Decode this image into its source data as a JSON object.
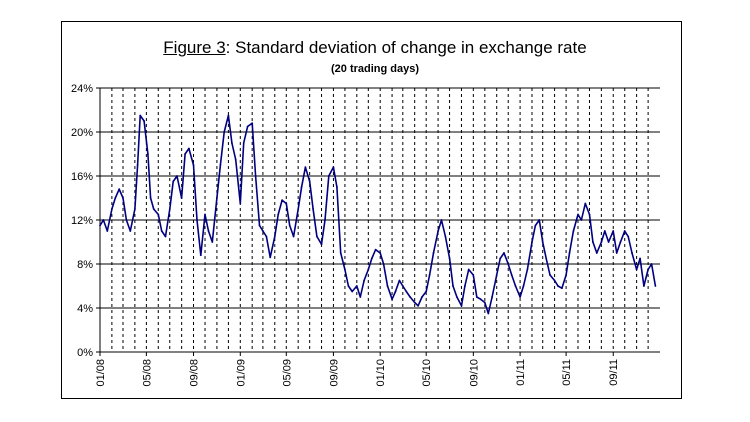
{
  "chart_data": {
    "type": "line",
    "title_label": "Figure 3",
    "title_rest": ": Standard deviation of change in exchange rate",
    "subtitle": "(20 trading days)",
    "xlabel": "",
    "ylabel": "",
    "ylim": [
      0,
      24
    ],
    "y_ticks": [
      "0%",
      "4%",
      "8%",
      "12%",
      "16%",
      "20%",
      "24%"
    ],
    "x_ticks": [
      "01/08",
      "05/08",
      "09/08",
      "01/09",
      "05/09",
      "09/09",
      "01/10",
      "05/10",
      "09/10",
      "01/11",
      "05/11",
      "09/11"
    ],
    "grid": "horizontal solid at each tick; vertical dashed monthly",
    "legend": "none",
    "series": [
      {
        "color": "#000080",
        "points": [
          [
            "2008-01-01",
            11.5
          ],
          [
            "2008-01-10",
            12.0
          ],
          [
            "2008-01-20",
            11.0
          ],
          [
            "2008-02-01",
            13.0
          ],
          [
            "2008-02-10",
            14.0
          ],
          [
            "2008-02-20",
            14.8
          ],
          [
            "2008-03-01",
            14.0
          ],
          [
            "2008-03-10",
            12.0
          ],
          [
            "2008-03-20",
            11.0
          ],
          [
            "2008-04-01",
            13.0
          ],
          [
            "2008-04-08",
            17.0
          ],
          [
            "2008-04-15",
            21.5
          ],
          [
            "2008-04-25",
            21.0
          ],
          [
            "2008-05-05",
            18.0
          ],
          [
            "2008-05-12",
            14.0
          ],
          [
            "2008-05-20",
            13.0
          ],
          [
            "2008-06-01",
            12.5
          ],
          [
            "2008-06-10",
            11.0
          ],
          [
            "2008-06-20",
            10.5
          ],
          [
            "2008-07-01",
            13.0
          ],
          [
            "2008-07-10",
            15.5
          ],
          [
            "2008-07-20",
            16.0
          ],
          [
            "2008-08-01",
            14.0
          ],
          [
            "2008-08-10",
            18.0
          ],
          [
            "2008-08-20",
            18.5
          ],
          [
            "2008-09-01",
            17.0
          ],
          [
            "2008-09-10",
            12.0
          ],
          [
            "2008-09-20",
            8.8
          ],
          [
            "2008-10-01",
            12.5
          ],
          [
            "2008-10-10",
            11.0
          ],
          [
            "2008-10-20",
            10.0
          ],
          [
            "2008-11-01",
            14.0
          ],
          [
            "2008-11-10",
            17.0
          ],
          [
            "2008-11-20",
            20.0
          ],
          [
            "2008-12-01",
            21.5
          ],
          [
            "2008-12-10",
            19.0
          ],
          [
            "2008-12-20",
            17.5
          ],
          [
            "2009-01-01",
            13.5
          ],
          [
            "2009-01-10",
            19.0
          ],
          [
            "2009-01-20",
            20.5
          ],
          [
            "2009-02-01",
            20.8
          ],
          [
            "2009-02-10",
            16.0
          ],
          [
            "2009-02-20",
            11.5
          ],
          [
            "2009-03-01",
            11.0
          ],
          [
            "2009-03-10",
            10.5
          ],
          [
            "2009-03-20",
            8.6
          ],
          [
            "2009-04-01",
            10.5
          ],
          [
            "2009-04-10",
            12.5
          ],
          [
            "2009-04-20",
            13.8
          ],
          [
            "2009-05-01",
            13.5
          ],
          [
            "2009-05-10",
            11.5
          ],
          [
            "2009-05-20",
            10.5
          ],
          [
            "2009-06-01",
            13.0
          ],
          [
            "2009-06-10",
            15.0
          ],
          [
            "2009-06-20",
            16.8
          ],
          [
            "2009-07-01",
            15.5
          ],
          [
            "2009-07-10",
            13.0
          ],
          [
            "2009-07-20",
            10.5
          ],
          [
            "2009-08-01",
            9.8
          ],
          [
            "2009-08-10",
            12.0
          ],
          [
            "2009-08-20",
            16.0
          ],
          [
            "2009-09-01",
            16.8
          ],
          [
            "2009-09-10",
            15.0
          ],
          [
            "2009-09-20",
            9.0
          ],
          [
            "2009-10-01",
            7.5
          ],
          [
            "2009-10-10",
            6.0
          ],
          [
            "2009-10-20",
            5.5
          ],
          [
            "2009-11-01",
            6.0
          ],
          [
            "2009-11-10",
            5.0
          ],
          [
            "2009-11-20",
            6.5
          ],
          [
            "2009-12-01",
            7.5
          ],
          [
            "2009-12-10",
            8.5
          ],
          [
            "2009-12-20",
            9.3
          ],
          [
            "2010-01-01",
            9.0
          ],
          [
            "2010-01-10",
            8.0
          ],
          [
            "2010-01-20",
            6.0
          ],
          [
            "2010-02-01",
            4.8
          ],
          [
            "2010-02-10",
            5.5
          ],
          [
            "2010-02-20",
            6.5
          ],
          [
            "2010-03-01",
            6.0
          ],
          [
            "2010-03-10",
            5.5
          ],
          [
            "2010-03-20",
            5.0
          ],
          [
            "2010-04-01",
            4.5
          ],
          [
            "2010-04-10",
            4.2
          ],
          [
            "2010-04-20",
            5.0
          ],
          [
            "2010-05-01",
            5.5
          ],
          [
            "2010-05-10",
            7.0
          ],
          [
            "2010-05-20",
            9.0
          ],
          [
            "2010-06-01",
            11.0
          ],
          [
            "2010-06-10",
            12.0
          ],
          [
            "2010-06-20",
            10.5
          ],
          [
            "2010-07-01",
            8.5
          ],
          [
            "2010-07-10",
            6.0
          ],
          [
            "2010-07-20",
            5.0
          ],
          [
            "2010-08-01",
            4.2
          ],
          [
            "2010-08-10",
            6.0
          ],
          [
            "2010-08-20",
            7.5
          ],
          [
            "2010-09-01",
            7.0
          ],
          [
            "2010-09-10",
            5.0
          ],
          [
            "2010-09-20",
            4.8
          ],
          [
            "2010-10-01",
            4.5
          ],
          [
            "2010-10-10",
            3.5
          ],
          [
            "2010-10-20",
            5.0
          ],
          [
            "2010-11-01",
            7.0
          ],
          [
            "2010-11-10",
            8.5
          ],
          [
            "2010-11-20",
            9.0
          ],
          [
            "2010-12-01",
            8.0
          ],
          [
            "2010-12-10",
            7.0
          ],
          [
            "2010-12-20",
            6.0
          ],
          [
            "2011-01-01",
            5.0
          ],
          [
            "2011-01-10",
            6.0
          ],
          [
            "2011-01-20",
            7.5
          ],
          [
            "2011-02-01",
            10.0
          ],
          [
            "2011-02-10",
            11.5
          ],
          [
            "2011-02-20",
            12.0
          ],
          [
            "2011-03-01",
            10.0
          ],
          [
            "2011-03-10",
            8.5
          ],
          [
            "2011-03-20",
            7.0
          ],
          [
            "2011-04-01",
            6.5
          ],
          [
            "2011-04-10",
            6.0
          ],
          [
            "2011-04-20",
            5.8
          ],
          [
            "2011-05-01",
            7.0
          ],
          [
            "2011-05-10",
            9.0
          ],
          [
            "2011-05-20",
            11.0
          ],
          [
            "2011-06-01",
            12.5
          ],
          [
            "2011-06-10",
            12.0
          ],
          [
            "2011-06-20",
            13.5
          ],
          [
            "2011-07-01",
            12.5
          ],
          [
            "2011-07-10",
            10.0
          ],
          [
            "2011-07-20",
            9.0
          ],
          [
            "2011-08-01",
            10.0
          ],
          [
            "2011-08-10",
            11.0
          ],
          [
            "2011-08-20",
            10.0
          ],
          [
            "2011-09-01",
            11.0
          ],
          [
            "2011-09-10",
            9.0
          ],
          [
            "2011-09-20",
            10.0
          ],
          [
            "2011-10-01",
            11.0
          ],
          [
            "2011-10-10",
            10.5
          ],
          [
            "2011-10-20",
            9.0
          ],
          [
            "2011-11-01",
            7.5
          ],
          [
            "2011-11-10",
            8.5
          ],
          [
            "2011-11-20",
            6.0
          ],
          [
            "2011-12-01",
            7.5
          ],
          [
            "2011-12-10",
            8.0
          ],
          [
            "2011-12-20",
            6.0
          ]
        ]
      }
    ]
  }
}
